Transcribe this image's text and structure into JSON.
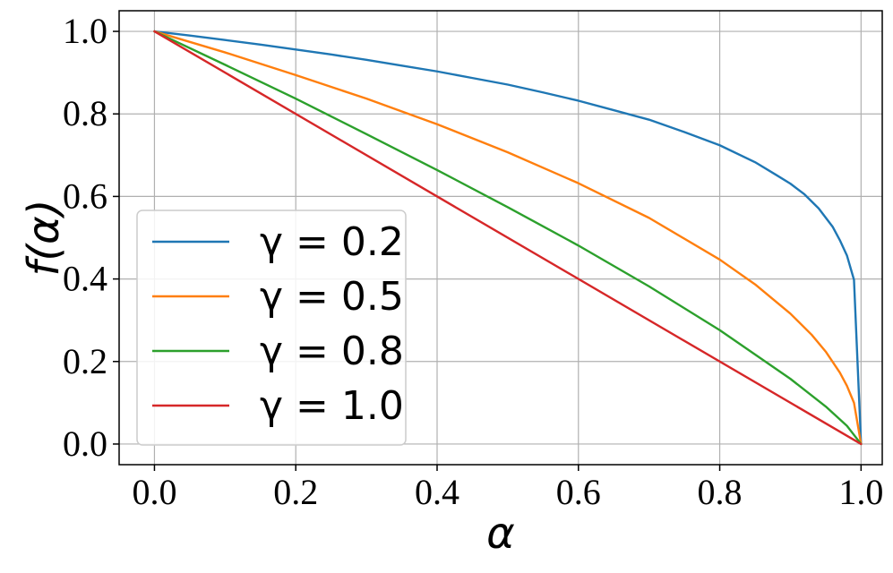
{
  "chart_data": {
    "type": "line",
    "title": "",
    "xlabel": "α",
    "ylabel": "f(α)",
    "xlim": [
      -0.05,
      1.03
    ],
    "ylim": [
      -0.05,
      1.05
    ],
    "x_ticks": [
      "0.0",
      "0.2",
      "0.4",
      "0.6",
      "0.8",
      "1.0"
    ],
    "y_ticks": [
      "0.0",
      "0.2",
      "0.4",
      "0.6",
      "0.8",
      "1.0"
    ],
    "grid": true,
    "legend_position": "center-left",
    "series": [
      {
        "name": "γ = 0.2",
        "color": "#1f77b4",
        "x": [
          0.0,
          0.05,
          0.1,
          0.15,
          0.2,
          0.25,
          0.3,
          0.35,
          0.4,
          0.45,
          0.5,
          0.55,
          0.6,
          0.65,
          0.7,
          0.75,
          0.8,
          0.85,
          0.88,
          0.9,
          0.92,
          0.94,
          0.96,
          0.97,
          0.98,
          0.99,
          1.0
        ],
        "y": [
          1.0,
          0.99,
          0.979,
          0.968,
          0.956,
          0.944,
          0.931,
          0.917,
          0.903,
          0.887,
          0.871,
          0.852,
          0.832,
          0.809,
          0.786,
          0.756,
          0.724,
          0.683,
          0.652,
          0.631,
          0.605,
          0.571,
          0.526,
          0.494,
          0.457,
          0.398,
          0.0
        ]
      },
      {
        "name": "γ = 0.5",
        "color": "#ff7f0e",
        "x": [
          0.0,
          0.1,
          0.2,
          0.3,
          0.4,
          0.5,
          0.6,
          0.7,
          0.8,
          0.85,
          0.9,
          0.93,
          0.95,
          0.97,
          0.98,
          0.99,
          1.0
        ],
        "y": [
          1.0,
          0.949,
          0.894,
          0.837,
          0.775,
          0.707,
          0.632,
          0.548,
          0.447,
          0.387,
          0.316,
          0.265,
          0.224,
          0.173,
          0.141,
          0.1,
          0.0
        ]
      },
      {
        "name": "γ = 0.8",
        "color": "#2ca02c",
        "x": [
          0.0,
          0.1,
          0.2,
          0.3,
          0.4,
          0.5,
          0.6,
          0.7,
          0.8,
          0.9,
          0.95,
          0.98,
          1.0
        ],
        "y": [
          1.0,
          0.919,
          0.837,
          0.751,
          0.664,
          0.574,
          0.481,
          0.382,
          0.276,
          0.158,
          0.091,
          0.044,
          0.0
        ]
      },
      {
        "name": "γ = 1.0",
        "color": "#d62728",
        "x": [
          0.0,
          1.0
        ],
        "y": [
          1.0,
          0.0
        ]
      }
    ]
  }
}
